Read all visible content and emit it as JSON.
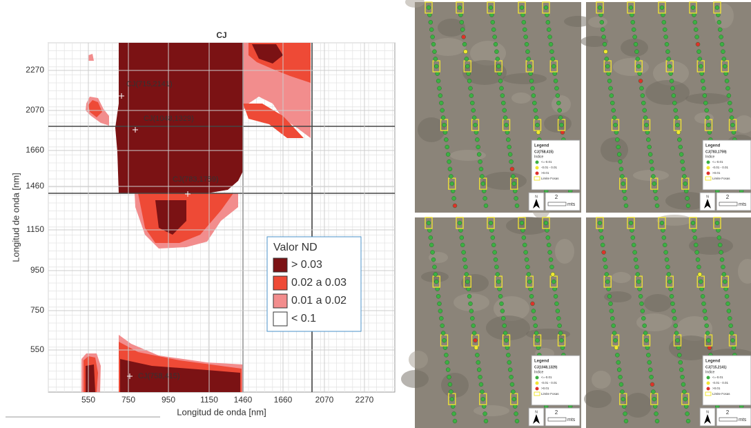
{
  "figure": {
    "plot": {
      "title": "CJ",
      "x_label": "Longitud de onda [nm]",
      "y_label": "Longitud de onda [nm]",
      "x_ticks": [
        550,
        750,
        950,
        1150,
        1460,
        1660,
        2070,
        2270
      ],
      "y_ticks": [
        2270,
        2070,
        1660,
        1460,
        1150,
        950,
        750,
        550
      ],
      "annotations": [
        "CJ(715,2141)",
        "CJ(1048,1329)",
        "CJ(783,1759)",
        "CJ(758,415)"
      ],
      "legend": {
        "title": "Valor ND",
        "items": [
          {
            "label": "> 0.03",
            "color": "#7b1214"
          },
          {
            "label": "0.02 a 0.03",
            "color": "#ee4a36"
          },
          {
            "label": "0.01 a 0.02",
            "color": "#f28d8d"
          },
          {
            "label": "< 0.1",
            "color": "#ffffff"
          }
        ]
      }
    },
    "maps": [
      {
        "legend_title": "Legend",
        "layer": "CJ(758,415)",
        "field": "Indice",
        "classes": [
          {
            "label": "<=-0.01",
            "color": "#3cb043"
          },
          {
            "label": "-0.01 - 0.01",
            "color": "#f2e631"
          },
          {
            "label": ">0.01",
            "color": "#e0302a"
          }
        ],
        "boundary": "Limite Fosas",
        "north": "N",
        "scale": "2",
        "unit": "mts"
      },
      {
        "legend_title": "Legend",
        "layer": "CJ(783,1759)",
        "field": "Indice",
        "classes": [
          {
            "label": "<=-0.01",
            "color": "#3cb043"
          },
          {
            "label": "-0.01 - 0.01",
            "color": "#f2e631"
          },
          {
            "label": ">0.01",
            "color": "#e0302a"
          }
        ],
        "boundary": "Limite Fosas",
        "north": "N",
        "scale": "2",
        "unit": "mts"
      },
      {
        "legend_title": "Legend",
        "layer": "CJ(1048,1329)",
        "field": "Indice",
        "classes": [
          {
            "label": "<=-0.01",
            "color": "#3cb043"
          },
          {
            "label": "-0.01 - 0.01",
            "color": "#f2e631"
          },
          {
            "label": ">0.01",
            "color": "#e0302a"
          }
        ],
        "boundary": "Limite Fosas",
        "north": "N",
        "scale": "2",
        "unit": "mts"
      },
      {
        "legend_title": "Legend",
        "layer": "CJ(715,2141)",
        "field": "Indice",
        "classes": [
          {
            "label": "<=-0.01",
            "color": "#3cb043"
          },
          {
            "label": "-0.01 - 0.01",
            "color": "#f2e631"
          },
          {
            "label": ">0.01",
            "color": "#e0302a"
          }
        ],
        "boundary": "Limite Fosas",
        "north": "N",
        "scale": "2",
        "unit": "mts"
      }
    ]
  }
}
